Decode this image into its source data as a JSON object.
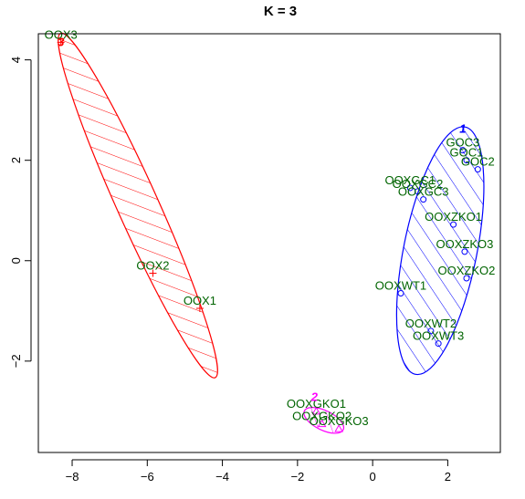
{
  "chart_data": {
    "type": "scatter",
    "title": "K = 3",
    "xlabel": "",
    "ylabel": "",
    "xlim": [
      -8.9,
      3.4
    ],
    "ylim": [
      -3.82,
      4.52
    ],
    "xticks": [
      -8,
      -6,
      -4,
      -2,
      0,
      2
    ],
    "yticks": [
      -2,
      0,
      2,
      4
    ],
    "label_color": "#006400",
    "clusters": [
      {
        "id": "3",
        "color": "#ff0000",
        "marker": "+",
        "hatch_angle": 45,
        "center": [
          -8.3,
          4.35
        ],
        "ellipse": {
          "center": [
            -6.25,
            1.1
          ],
          "rx": 4.0,
          "ry": 0.5,
          "angle_deg": -59.0
        },
        "points": [
          {
            "label": "OOX3",
            "x": -8.3,
            "y": 4.35
          },
          {
            "label": "OOX2",
            "x": -5.85,
            "y": -0.25
          },
          {
            "label": "OOX1",
            "x": -4.6,
            "y": -0.95
          }
        ]
      },
      {
        "id": "1",
        "color": "#0000ff",
        "marker": "o",
        "hatch_angle": 45,
        "center": [
          2.4,
          2.62
        ],
        "ellipse": {
          "center": [
            1.8,
            0.2
          ],
          "rx": 2.55,
          "ry": 0.95,
          "angle_deg": 75.0
        },
        "points": [
          {
            "label": "GOC3",
            "x": 2.4,
            "y": 2.2
          },
          {
            "label": "GOC1",
            "x": 2.5,
            "y": 2.0
          },
          {
            "label": "GOC2",
            "x": 2.8,
            "y": 1.82
          },
          {
            "label": "OOXGC1",
            "x": 1.0,
            "y": 1.45
          },
          {
            "label": "OOXGC2",
            "x": 1.2,
            "y": 1.38
          },
          {
            "label": "OOXGC3",
            "x": 1.35,
            "y": 1.22
          },
          {
            "label": "OOXZKO1",
            "x": 2.15,
            "y": 0.72
          },
          {
            "label": "OOXZKO3",
            "x": 2.45,
            "y": 0.18
          },
          {
            "label": "OOXZKO2",
            "x": 2.5,
            "y": -0.35
          },
          {
            "label": "OOXWT1",
            "x": 0.75,
            "y": -0.65
          },
          {
            "label": "OOXWT2",
            "x": 1.55,
            "y": -1.4
          },
          {
            "label": "OOXWT3",
            "x": 1.75,
            "y": -1.65
          }
        ]
      },
      {
        "id": "2",
        "color": "#ff00ff",
        "marker": "triangle",
        "hatch_angle": -45,
        "center": [
          -1.55,
          -2.72
        ],
        "ellipse": {
          "center": [
            -1.3,
            -3.18
          ],
          "rx": 0.55,
          "ry": 0.2,
          "angle_deg": -20.0
        },
        "points": [
          {
            "label": "OOXGKO1",
            "x": -1.5,
            "y": -3.0
          },
          {
            "label": "OOXGKO2",
            "x": -1.35,
            "y": -3.25
          },
          {
            "label": "OOXGKO3",
            "x": -0.9,
            "y": -3.35
          }
        ]
      }
    ]
  }
}
